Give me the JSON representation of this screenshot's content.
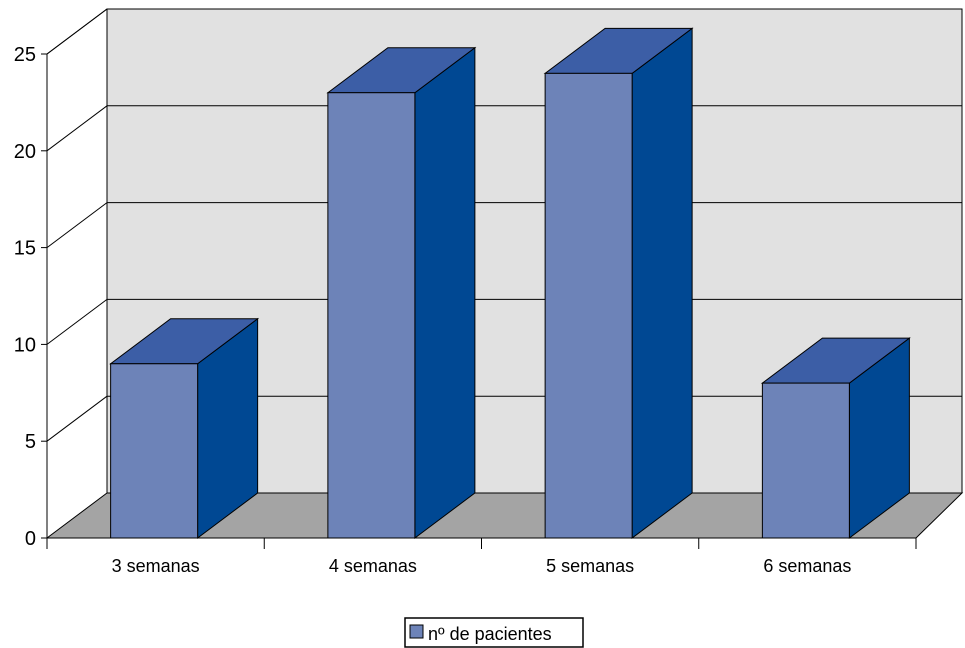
{
  "chart_data": {
    "type": "bar",
    "categories": [
      "3 semanas",
      "4 semanas",
      "5 semanas",
      "6 semanas"
    ],
    "series": [
      {
        "name": "nº de pacientes",
        "values": [
          9,
          23,
          24,
          8
        ]
      }
    ],
    "yticks": [
      "0",
      "5",
      "10",
      "15",
      "20",
      "25"
    ],
    "ylim": [
      0,
      25
    ],
    "grid": true,
    "three_d": true,
    "legend_position": "bottom-center",
    "colors": {
      "bar_front": "#6d83b8",
      "bar_side": "#004893",
      "bar_top": "#3c5ea6",
      "back_wall": "#e1e1e1",
      "floor": "#a4a4a4",
      "gridline": "#000000"
    }
  }
}
